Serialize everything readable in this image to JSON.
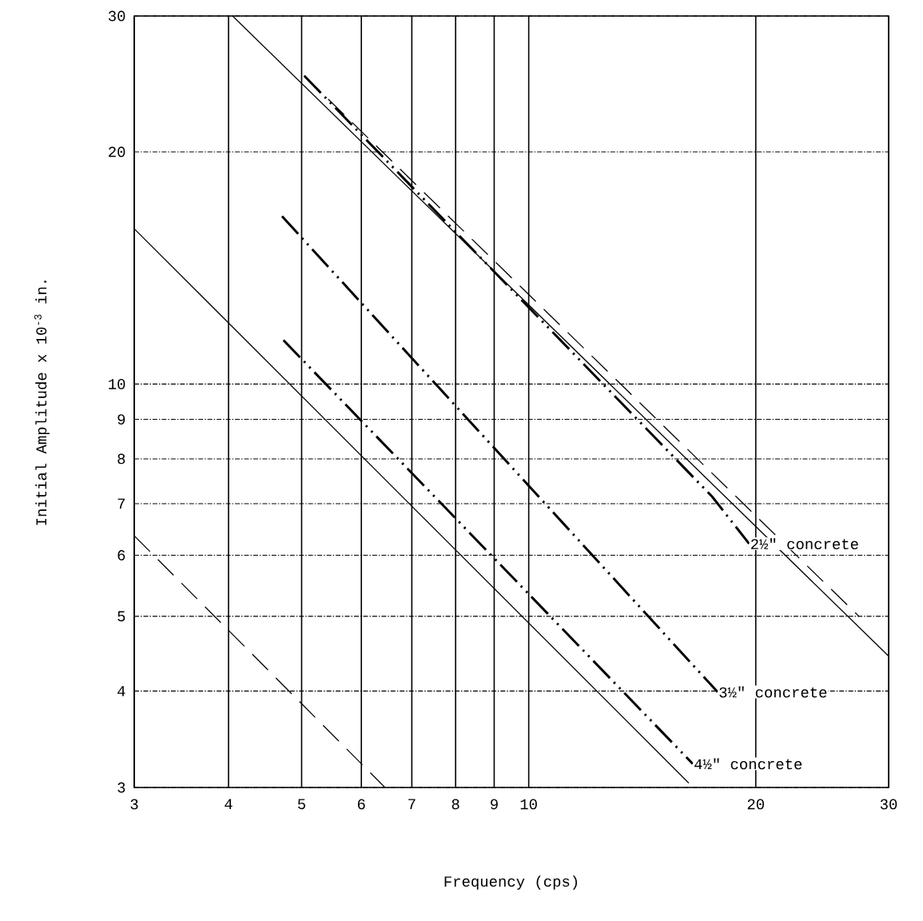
{
  "chart_data": {
    "type": "line",
    "xlabel": "Frequency (cps)",
    "ylabel": "Initial Amplitude x 10$^{-3}$ in.",
    "log": "xy",
    "grid": true,
    "xlim": [
      3,
      30
    ],
    "xticks": [
      3,
      4,
      5,
      6,
      7,
      8,
      9,
      10,
      20,
      30
    ],
    "ylim": [
      3,
      30
    ],
    "yticks": [
      3,
      4,
      5,
      6,
      7,
      8,
      9,
      10,
      20,
      30
    ],
    "series": [
      {
        "color": "#000000",
        "line_style": "solid",
        "x": [
          4.05,
          30
        ],
        "values": [
          30,
          4.44
        ]
      },
      {
        "color": "#000000",
        "line_style": "dashed",
        "x": [
          5.04,
          27.4
        ],
        "values": [
          25.1,
          5.0
        ]
      },
      {
        "color": "#000000",
        "line_style": "solid",
        "x": [
          3,
          16.3
        ],
        "values": [
          15.9,
          3.04
        ]
      },
      {
        "color": "#000000",
        "line_style": "dashed",
        "x": [
          3,
          6.45
        ],
        "values": [
          6.36,
          3
        ]
      },
      {
        "name": "2½\" concrete",
        "color": "#000000",
        "line_style": "dashdotted",
        "x": [
          5.04,
          17.5,
          19.6
        ],
        "values": [
          25.1,
          7.15,
          6.21
        ]
      },
      {
        "name": "3½\" concrete",
        "color": "#000000",
        "line_style": "dashdotted",
        "x": [
          4.71,
          17.8
        ],
        "values": [
          16.5,
          3.99
        ]
      },
      {
        "name": "4½\" concrete",
        "color": "#000000",
        "line_style": "dashdotted",
        "x": [
          4.73,
          16.5
        ],
        "values": [
          11.4,
          3.22
        ]
      }
    ]
  }
}
